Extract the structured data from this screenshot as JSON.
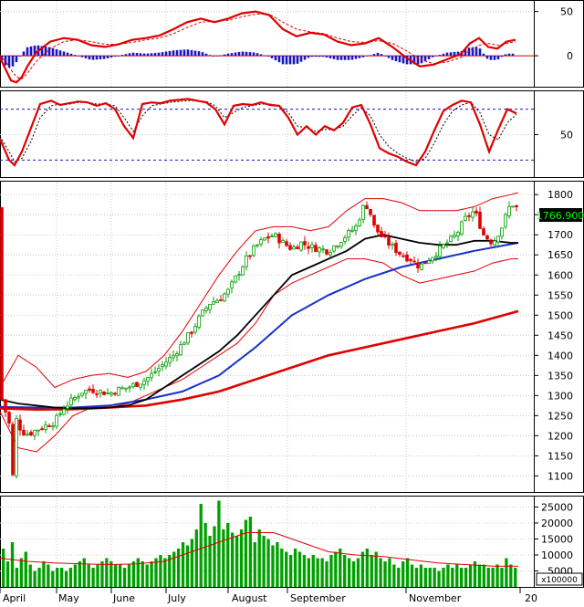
{
  "chart_data": [
    {
      "panel": "macd",
      "type": "line",
      "yticks": [
        "50",
        "0"
      ],
      "ytick_values": [
        50,
        0
      ],
      "ylim": [
        -35,
        62
      ],
      "colors": {
        "macd": "#e00000",
        "signal": "#e00000",
        "hist_pos": "#1515c8",
        "hist_neg": "#1515c8"
      },
      "x": [
        0,
        6,
        12,
        18,
        24,
        30,
        40,
        55,
        70,
        85,
        100,
        115,
        130,
        145,
        160,
        175,
        190,
        205,
        220,
        235,
        250,
        265,
        280,
        295,
        310,
        325,
        340,
        355,
        370,
        385,
        400,
        415,
        430,
        445,
        460,
        475,
        490,
        505,
        515,
        525,
        535,
        545,
        555,
        565
      ],
      "macd": [
        -2,
        -15,
        -28,
        -30,
        -24,
        -12,
        4,
        16,
        20,
        18,
        12,
        10,
        13,
        18,
        20,
        23,
        30,
        38,
        42,
        38,
        42,
        48,
        50,
        46,
        30,
        22,
        26,
        24,
        16,
        12,
        14,
        20,
        10,
        -2,
        -12,
        -10,
        -4,
        2,
        14,
        20,
        10,
        8,
        16,
        18
      ],
      "signal": [
        0,
        -6,
        -16,
        -24,
        -26,
        -20,
        -6,
        8,
        16,
        18,
        16,
        13,
        13,
        15,
        18,
        20,
        25,
        32,
        38,
        39,
        40,
        44,
        47,
        47,
        38,
        30,
        27,
        25,
        20,
        16,
        15,
        17,
        14,
        6,
        -4,
        -9,
        -7,
        -2,
        6,
        12,
        14,
        12,
        14,
        16
      ]
    },
    {
      "panel": "stochastic",
      "type": "line",
      "yticks": [
        "50"
      ],
      "ytick_values": [
        50
      ],
      "ylim": [
        0,
        100
      ],
      "levels": [
        20,
        80
      ],
      "x": [
        0,
        10,
        16,
        24,
        34,
        44,
        56,
        66,
        76,
        86,
        96,
        106,
        116,
        126,
        136,
        146,
        156,
        166,
        176,
        186,
        196,
        206,
        216,
        226,
        236,
        246,
        256,
        266,
        276,
        286,
        296,
        306,
        316,
        326,
        336,
        346,
        356,
        366,
        376,
        386,
        396,
        406,
        416,
        426,
        436,
        446,
        456,
        466,
        476,
        486,
        496,
        506,
        516,
        526,
        536,
        546,
        556,
        566
      ],
      "k": [
        45,
        20,
        14,
        30,
        58,
        86,
        90,
        85,
        87,
        89,
        88,
        84,
        87,
        80,
        60,
        46,
        86,
        88,
        87,
        90,
        91,
        92,
        90,
        88,
        80,
        62,
        84,
        86,
        85,
        88,
        85,
        84,
        70,
        50,
        60,
        50,
        60,
        55,
        64,
        82,
        85,
        62,
        34,
        28,
        24,
        18,
        14,
        30,
        55,
        78,
        85,
        90,
        88,
        62,
        30,
        56,
        80,
        75
      ],
      "d": [
        48,
        30,
        18,
        22,
        42,
        70,
        84,
        86,
        86,
        88,
        88,
        86,
        86,
        84,
        70,
        54,
        72,
        84,
        86,
        88,
        89,
        90,
        90,
        89,
        84,
        70,
        76,
        82,
        84,
        86,
        86,
        84,
        76,
        60,
        58,
        54,
        56,
        56,
        60,
        72,
        82,
        72,
        50,
        36,
        28,
        22,
        18,
        22,
        40,
        62,
        78,
        85,
        88,
        76,
        50,
        44,
        64,
        74
      ]
    },
    {
      "panel": "price",
      "type": "candlestick",
      "current_price": "1766.900",
      "yticks": [
        "1800",
        "1750",
        "1700",
        "1650",
        "1600",
        "1550",
        "1500",
        "1450",
        "1400",
        "1350",
        "1300",
        "1250",
        "1200",
        "1150",
        "1100"
      ],
      "ytick_values": [
        1800,
        1750,
        1700,
        1650,
        1600,
        1550,
        1500,
        1450,
        1400,
        1350,
        1300,
        1250,
        1200,
        1150,
        1100
      ],
      "ylim": [
        1060,
        1830
      ],
      "colors": {
        "up": "#00a000",
        "down": "#e00000",
        "bollinger": "#e00000",
        "ma_short": "#000000",
        "ma_mid": "#1530c8",
        "ma_long": "#e00000"
      },
      "close_path_x": [
        2,
        10,
        14,
        18,
        24,
        32,
        40,
        50,
        60,
        70,
        80,
        90,
        100,
        110,
        120,
        130,
        140,
        150,
        160,
        170,
        180,
        190,
        200,
        210,
        220,
        230,
        240,
        250,
        260,
        270,
        280,
        290,
        300,
        310,
        320,
        330,
        340,
        350,
        360,
        370,
        380,
        390,
        400,
        405,
        410,
        420,
        430,
        440,
        450,
        460,
        470,
        480,
        490,
        500,
        510,
        520,
        530,
        540,
        550,
        560,
        566
      ],
      "close_path_y": [
        1290,
        1230,
        1100,
        1240,
        1210,
        1205,
        1215,
        1225,
        1235,
        1270,
        1290,
        1310,
        1315,
        1310,
        1305,
        1315,
        1320,
        1330,
        1340,
        1360,
        1380,
        1400,
        1430,
        1460,
        1500,
        1530,
        1540,
        1560,
        1600,
        1640,
        1670,
        1690,
        1700,
        1680,
        1665,
        1680,
        1670,
        1665,
        1660,
        1680,
        1700,
        1720,
        1780,
        1760,
        1720,
        1690,
        1670,
        1650,
        1640,
        1620,
        1640,
        1660,
        1680,
        1700,
        1740,
        1760,
        1700,
        1680,
        1720,
        1780,
        1767
      ],
      "ma_short_x": [
        0,
        20,
        40,
        60,
        80,
        100,
        120,
        140,
        160,
        180,
        200,
        220,
        240,
        260,
        280,
        300,
        320,
        340,
        360,
        380,
        400,
        420,
        440,
        460,
        480,
        500,
        520,
        540,
        560,
        568
      ],
      "ma_short_y": [
        1290,
        1280,
        1275,
        1270,
        1268,
        1268,
        1270,
        1275,
        1290,
        1320,
        1350,
        1380,
        1410,
        1450,
        1500,
        1550,
        1600,
        1620,
        1640,
        1660,
        1690,
        1700,
        1690,
        1680,
        1675,
        1675,
        1685,
        1685,
        1680,
        1680
      ],
      "ma_mid_x": [
        0,
        40,
        80,
        120,
        160,
        200,
        240,
        280,
        320,
        360,
        400,
        440,
        480,
        520,
        568
      ],
      "ma_mid_y": [
        1272,
        1270,
        1270,
        1275,
        1290,
        1310,
        1350,
        1420,
        1500,
        1550,
        1590,
        1620,
        1640,
        1660,
        1680
      ],
      "ma_long_x": [
        0,
        40,
        80,
        120,
        160,
        200,
        240,
        280,
        320,
        360,
        400,
        440,
        480,
        520,
        568
      ],
      "ma_long_y": [
        1268,
        1265,
        1266,
        1270,
        1275,
        1290,
        1310,
        1340,
        1370,
        1400,
        1420,
        1440,
        1460,
        1480,
        1510
      ],
      "bb_upper_x": [
        0,
        20,
        40,
        60,
        80,
        100,
        120,
        140,
        160,
        180,
        200,
        220,
        240,
        260,
        280,
        300,
        320,
        340,
        360,
        380,
        400,
        420,
        440,
        460,
        480,
        500,
        520,
        540,
        560,
        568
      ],
      "bb_upper_y": [
        1320,
        1400,
        1370,
        1320,
        1340,
        1350,
        1355,
        1345,
        1360,
        1400,
        1460,
        1530,
        1600,
        1660,
        1710,
        1720,
        1720,
        1710,
        1720,
        1760,
        1790,
        1790,
        1780,
        1760,
        1760,
        1760,
        1770,
        1790,
        1800,
        1805
      ],
      "bb_lower_x": [
        0,
        20,
        40,
        60,
        80,
        100,
        120,
        140,
        160,
        180,
        200,
        220,
        240,
        260,
        280,
        300,
        320,
        340,
        360,
        380,
        400,
        420,
        440,
        460,
        480,
        500,
        520,
        540,
        560,
        568
      ],
      "bb_lower_y": [
        1260,
        1170,
        1160,
        1200,
        1250,
        1270,
        1270,
        1280,
        1300,
        1320,
        1340,
        1370,
        1400,
        1430,
        1480,
        1550,
        1580,
        1600,
        1620,
        1640,
        1640,
        1630,
        1600,
        1580,
        1590,
        1600,
        1610,
        1630,
        1640,
        1640
      ]
    },
    {
      "panel": "volume",
      "type": "bar",
      "yticks": [
        "25000",
        "20000",
        "15000",
        "10000",
        "5000"
      ],
      "ytick_values": [
        25000,
        20000,
        15000,
        10000,
        5000
      ],
      "unit_label": "x100000",
      "ylim": [
        0,
        28000
      ],
      "colors": {
        "bar": "#00a000",
        "ma": "#e00000"
      },
      "values": [
        12000,
        8000,
        14000,
        6000,
        9000,
        11000,
        7000,
        5000,
        6000,
        8000,
        7000,
        5000,
        6000,
        6000,
        5000,
        6000,
        7000,
        8000,
        9000,
        7000,
        6000,
        7000,
        8000,
        9000,
        8000,
        7000,
        7000,
        6000,
        7000,
        8000,
        9000,
        8000,
        7000,
        8000,
        9000,
        10000,
        9000,
        10000,
        11000,
        12000,
        14000,
        13000,
        15000,
        18000,
        26000,
        20000,
        16000,
        19000,
        27000,
        18000,
        20000,
        17000,
        16000,
        18000,
        21000,
        22000,
        14000,
        18000,
        16000,
        15000,
        13000,
        14000,
        12000,
        11000,
        10000,
        12000,
        11000,
        10000,
        9000,
        10000,
        9000,
        9000,
        8000,
        10000,
        11000,
        12000,
        10000,
        9000,
        8000,
        9000,
        11000,
        12000,
        10000,
        11000,
        9000,
        8000,
        9000,
        7000,
        6000,
        8000,
        9000,
        7000,
        6000,
        7000,
        6000,
        6000,
        6000,
        5000,
        6000,
        7000,
        6000,
        7000,
        6000,
        6000,
        7000,
        8000,
        7000,
        7000,
        6000,
        6000,
        7000,
        6000,
        9000,
        7000,
        6000
      ],
      "ma_x": [
        0,
        30,
        60,
        90,
        120,
        150,
        180,
        210,
        240,
        270,
        300,
        330,
        360,
        390,
        420,
        450,
        480,
        510,
        540,
        568
      ],
      "ma_y": [
        9000,
        8000,
        7500,
        7200,
        7000,
        7200,
        8000,
        11000,
        14000,
        17000,
        17000,
        14000,
        11000,
        10000,
        9500,
        8500,
        7500,
        7000,
        6500,
        6500
      ]
    }
  ],
  "x_axis": {
    "months": [
      "April",
      "May",
      "June",
      "July",
      "August",
      "September",
      "November",
      "20"
    ]
  }
}
